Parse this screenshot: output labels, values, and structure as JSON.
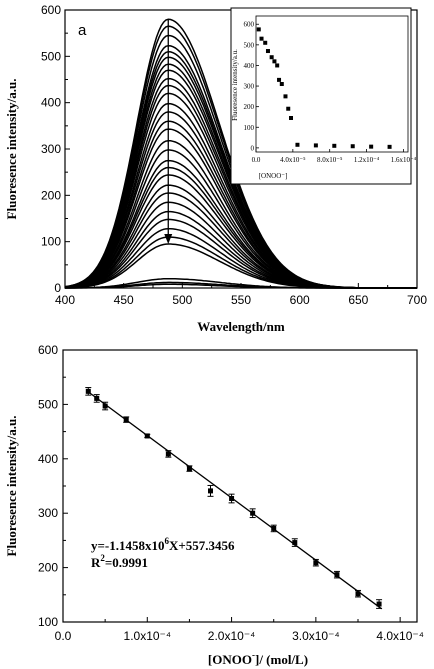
{
  "chart_data": [
    {
      "type": "line",
      "panel_label": "a",
      "xlabel": "Wavelength/nm",
      "ylabel": "Fluoresence intensity/a.u.",
      "xlim": [
        400,
        700
      ],
      "ylim": [
        0,
        600
      ],
      "x_ticks": [
        "400",
        "450",
        "500",
        "550",
        "600",
        "650",
        "700"
      ],
      "y_ticks": [
        "0",
        "100",
        "200",
        "300",
        "400",
        "500",
        "600"
      ],
      "peak_wavelength": 488,
      "peak_intensities": [
        580,
        565,
        545,
        523,
        510,
        498,
        483,
        470,
        452,
        437,
        420,
        398,
        380,
        360,
        343,
        318,
        298,
        275,
        260,
        244,
        222,
        205,
        185,
        165,
        148,
        128,
        110,
        95,
        20,
        12,
        8
      ],
      "arrow": {
        "from": 580,
        "to": 95,
        "x": 488
      },
      "inset": {
        "type": "scatter",
        "xlabel": "[ONOO⁻]",
        "ylabel": "Fluoresence intensity/a.u.",
        "xlim": [
          0,
          0.000165
        ],
        "ylim": [
          -20,
          640
        ],
        "x_ticks": [
          "0.0",
          "4.0x10⁻⁵",
          "8.0x10⁻⁵",
          "1.2x10⁻⁴",
          "1.6x10⁻⁴"
        ],
        "y_ticks": [
          "0",
          "100",
          "200",
          "300",
          "400",
          "500",
          "600"
        ],
        "x": [
          3e-06,
          6e-06,
          1e-05,
          1.3e-05,
          1.7e-05,
          2e-05,
          2.3e-05,
          2.5e-05,
          2.8e-05,
          3.2e-05,
          3.5e-05,
          3.8e-05,
          4.5e-05,
          6.5e-05,
          8.5e-05,
          0.000105,
          0.000125,
          0.000145
        ],
        "y": [
          575,
          530,
          510,
          470,
          440,
          420,
          400,
          330,
          310,
          250,
          190,
          145,
          15,
          12,
          10,
          8,
          6,
          5
        ]
      }
    },
    {
      "type": "scatter",
      "xlabel_main": "[ONOO",
      "xlabel_sup": "-",
      "xlabel_rest": "]/ (mol/L)",
      "ylabel": "Fluoresence intensity/a.u.",
      "xlim": [
        0,
        0.00042
      ],
      "ylim": [
        100,
        600
      ],
      "x_ticks": [
        "0.0",
        "1.0x10⁻⁴",
        "2.0x10⁻⁴",
        "3.0x10⁻⁴",
        "4.0x10⁻⁴"
      ],
      "y_ticks": [
        "100",
        "200",
        "300",
        "400",
        "500",
        "600"
      ],
      "x": [
        3e-05,
        4e-05,
        5e-05,
        7.5e-05,
        0.0001,
        0.000125,
        0.00015,
        0.000175,
        0.0002,
        0.000225,
        0.00025,
        0.000275,
        0.0003,
        0.000325,
        0.00035,
        0.000375
      ],
      "y": [
        524,
        511,
        497,
        472,
        442,
        409,
        382,
        341,
        327,
        300,
        272,
        246,
        209,
        187,
        152,
        133
      ],
      "error": [
        7,
        7,
        7,
        5,
        3,
        6,
        5,
        10,
        8,
        8,
        6,
        7,
        6,
        6,
        6,
        8
      ],
      "fit": {
        "slope": -1145800.0,
        "intercept": 557.3456,
        "x_range": [
          2.8e-05,
          0.000378
        ]
      },
      "equation": {
        "line1_a": "y=-1.1458x10",
        "line1_sup": "6",
        "line1_b": "X+557.3456",
        "line2_a": "R",
        "line2_sup": "2",
        "line2_b": "=0.9991"
      }
    }
  ]
}
